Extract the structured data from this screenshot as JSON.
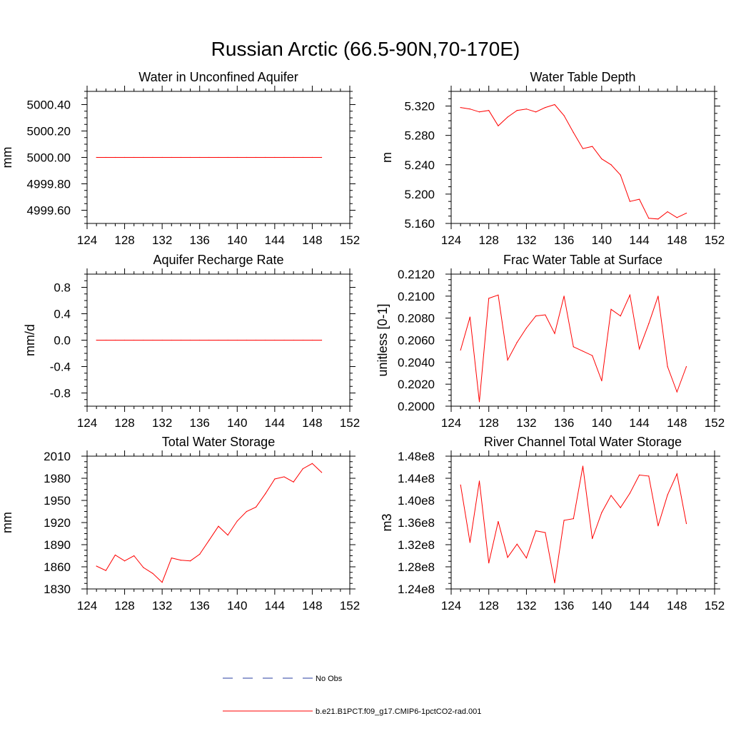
{
  "title": "Russian Arctic (66.5-90N,70-170E)",
  "colors": {
    "model": "#ff0000",
    "obs": "#2a3fa0",
    "axes": "#000000"
  },
  "legend": {
    "entries": [
      {
        "label": "No Obs",
        "style": "dashed",
        "color": "#2a3fa0"
      },
      {
        "label": "b.e21.B1PCT.f09_g17.CMIP6-1pctCO2-rad.001",
        "style": "solid",
        "color": "#ff0000"
      }
    ]
  },
  "chart_data": [
    {
      "type": "line",
      "title": "Water in Unconfined Aquifer",
      "ylabel": "mm",
      "xlim": [
        124,
        152
      ],
      "xticks": [
        124,
        128,
        132,
        136,
        140,
        144,
        148,
        152
      ],
      "ylim": [
        4999.5,
        5000.5
      ],
      "yticks": [
        4999.6,
        4999.8,
        5000.0,
        5000.2,
        5000.4
      ],
      "ytick_labels": [
        "4999.60",
        "4999.80",
        "5000.00",
        "5000.20",
        "5000.40"
      ],
      "x": [
        125,
        126,
        127,
        128,
        129,
        130,
        131,
        132,
        133,
        134,
        135,
        136,
        137,
        138,
        139,
        140,
        141,
        142,
        143,
        144,
        145,
        146,
        147,
        148,
        149
      ],
      "series": [
        {
          "name": "b.e21.B1PCT.f09_g17.CMIP6-1pctCO2-rad.001",
          "values": [
            5000,
            5000,
            5000,
            5000,
            5000,
            5000,
            5000,
            5000,
            5000,
            5000,
            5000,
            5000,
            5000,
            5000,
            5000,
            5000,
            5000,
            5000,
            5000,
            5000,
            5000,
            5000,
            5000,
            5000,
            5000
          ]
        }
      ]
    },
    {
      "type": "line",
      "title": "Water Table Depth",
      "ylabel": "m",
      "xlim": [
        124,
        152
      ],
      "xticks": [
        124,
        128,
        132,
        136,
        140,
        144,
        148,
        152
      ],
      "ylim": [
        5.16,
        5.34
      ],
      "yticks": [
        5.16,
        5.2,
        5.24,
        5.28,
        5.32
      ],
      "ytick_labels": [
        "5.160",
        "5.200",
        "5.240",
        "5.280",
        "5.320"
      ],
      "x": [
        125,
        126,
        127,
        128,
        129,
        130,
        131,
        132,
        133,
        134,
        135,
        136,
        137,
        138,
        139,
        140,
        141,
        142,
        143,
        144,
        145,
        146,
        147,
        148,
        149
      ],
      "series": [
        {
          "name": "b.e21.B1PCT.f09_g17.CMIP6-1pctCO2-rad.001",
          "values": [
            5.318,
            5.316,
            5.312,
            5.314,
            5.293,
            5.305,
            5.314,
            5.316,
            5.312,
            5.318,
            5.322,
            5.307,
            5.284,
            5.262,
            5.265,
            5.248,
            5.24,
            5.226,
            5.19,
            5.193,
            5.167,
            5.166,
            5.176,
            5.168,
            5.174
          ]
        }
      ]
    },
    {
      "type": "line",
      "title": "Aquifer Recharge Rate",
      "ylabel": "mm/d",
      "xlim": [
        124,
        152
      ],
      "xticks": [
        124,
        128,
        132,
        136,
        140,
        144,
        148,
        152
      ],
      "ylim": [
        -1.0,
        1.0
      ],
      "yticks": [
        -0.8,
        -0.4,
        0.0,
        0.4,
        0.8
      ],
      "ytick_labels": [
        "-0.8",
        "-0.4",
        "0.0",
        "0.4",
        "0.8"
      ],
      "x": [
        125,
        126,
        127,
        128,
        129,
        130,
        131,
        132,
        133,
        134,
        135,
        136,
        137,
        138,
        139,
        140,
        141,
        142,
        143,
        144,
        145,
        146,
        147,
        148,
        149
      ],
      "series": [
        {
          "name": "b.e21.B1PCT.f09_g17.CMIP6-1pctCO2-rad.001",
          "values": [
            0,
            0,
            0,
            0,
            0,
            0,
            0,
            0,
            0,
            0,
            0,
            0,
            0,
            0,
            0,
            0,
            0,
            0,
            0,
            0,
            0,
            0,
            0,
            0,
            0
          ]
        }
      ]
    },
    {
      "type": "line",
      "title": "Frac Water Table at Surface",
      "ylabel": "unitless [0-1]",
      "xlim": [
        124,
        152
      ],
      "xticks": [
        124,
        128,
        132,
        136,
        140,
        144,
        148,
        152
      ],
      "ylim": [
        0.2,
        0.212
      ],
      "yticks": [
        0.2,
        0.202,
        0.204,
        0.206,
        0.208,
        0.21,
        0.212
      ],
      "ytick_labels": [
        "0.2000",
        "0.2020",
        "0.2040",
        "0.2060",
        "0.2080",
        "0.2100",
        "0.2120"
      ],
      "x": [
        125,
        126,
        127,
        128,
        129,
        130,
        131,
        132,
        133,
        134,
        135,
        136,
        137,
        138,
        139,
        140,
        141,
        142,
        143,
        144,
        145,
        146,
        147,
        148,
        149
      ],
      "series": [
        {
          "name": "b.e21.B1PCT.f09_g17.CMIP6-1pctCO2-rad.001",
          "values": [
            0.2051,
            0.2081,
            0.2004,
            0.2098,
            0.2101,
            0.2042,
            0.2058,
            0.2071,
            0.2082,
            0.2083,
            0.2066,
            0.21,
            0.2054,
            0.205,
            0.2046,
            0.2023,
            0.2088,
            0.2082,
            0.2101,
            0.2052,
            0.2075,
            0.21,
            0.2036,
            0.2013,
            0.2036
          ]
        }
      ]
    },
    {
      "type": "line",
      "title": "Total Water Storage",
      "ylabel": "mm",
      "xlim": [
        124,
        152
      ],
      "xticks": [
        124,
        128,
        132,
        136,
        140,
        144,
        148,
        152
      ],
      "ylim": [
        1830,
        2010
      ],
      "yticks": [
        1830,
        1860,
        1890,
        1920,
        1950,
        1980,
        2010
      ],
      "ytick_labels": [
        "1830",
        "1860",
        "1890",
        "1920",
        "1950",
        "1980",
        "2010"
      ],
      "x": [
        125,
        126,
        127,
        128,
        129,
        130,
        131,
        132,
        133,
        134,
        135,
        136,
        137,
        138,
        139,
        140,
        141,
        142,
        143,
        144,
        145,
        146,
        147,
        148,
        149
      ],
      "series": [
        {
          "name": "b.e21.B1PCT.f09_g17.CMIP6-1pctCO2-rad.001",
          "values": [
            1861,
            1855,
            1876,
            1868,
            1875,
            1859,
            1851,
            1839,
            1872,
            1869,
            1868,
            1877,
            1896,
            1915,
            1903,
            1922,
            1935,
            1941,
            1959,
            1979,
            1982,
            1975,
            1993,
            2000,
            1988
          ]
        }
      ]
    },
    {
      "type": "line",
      "title": "River Channel Total Water Storage",
      "ylabel": "m3",
      "xlim": [
        124,
        152
      ],
      "xticks": [
        124,
        128,
        132,
        136,
        140,
        144,
        148,
        152
      ],
      "ylim": [
        124000000,
        148000000
      ],
      "yticks": [
        124000000,
        128000000,
        132000000,
        136000000,
        140000000,
        144000000,
        148000000
      ],
      "ytick_labels": [
        "1.24e8",
        "1.28e8",
        "1.32e8",
        "1.36e8",
        "1.40e8",
        "1.44e8",
        "1.48e8"
      ],
      "x": [
        125,
        126,
        127,
        128,
        129,
        130,
        131,
        132,
        133,
        134,
        135,
        136,
        137,
        138,
        139,
        140,
        141,
        142,
        143,
        144,
        145,
        146,
        147,
        148,
        149
      ],
      "series": [
        {
          "name": "b.e21.B1PCT.f09_g17.CMIP6-1pctCO2-rad.001",
          "values": [
            142800000,
            132400000,
            143500000,
            128700000,
            136200000,
            129700000,
            132100000,
            129600000,
            134500000,
            134200000,
            125100000,
            136400000,
            136700000,
            146200000,
            133100000,
            137800000,
            140900000,
            138700000,
            141300000,
            144600000,
            144400000,
            135400000,
            141000000,
            144800000,
            135800000
          ]
        }
      ]
    }
  ]
}
